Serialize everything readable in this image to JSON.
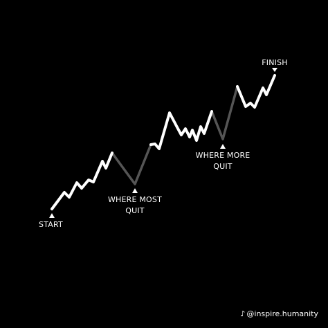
{
  "labels": {
    "start": "START",
    "where_most_line1": "WHERE MOST",
    "where_most_line2": "QUIT",
    "where_more_line1": "WHERE MORE",
    "where_more_line2": "QUIT",
    "finish": "FINISH"
  },
  "credit": {
    "icon": "tiktok-note-icon",
    "handle": "@inspire.humanity"
  },
  "colors": {
    "background": "#000000",
    "path": "#ffffff",
    "dip": "#555555",
    "text": "#ffffff"
  }
}
